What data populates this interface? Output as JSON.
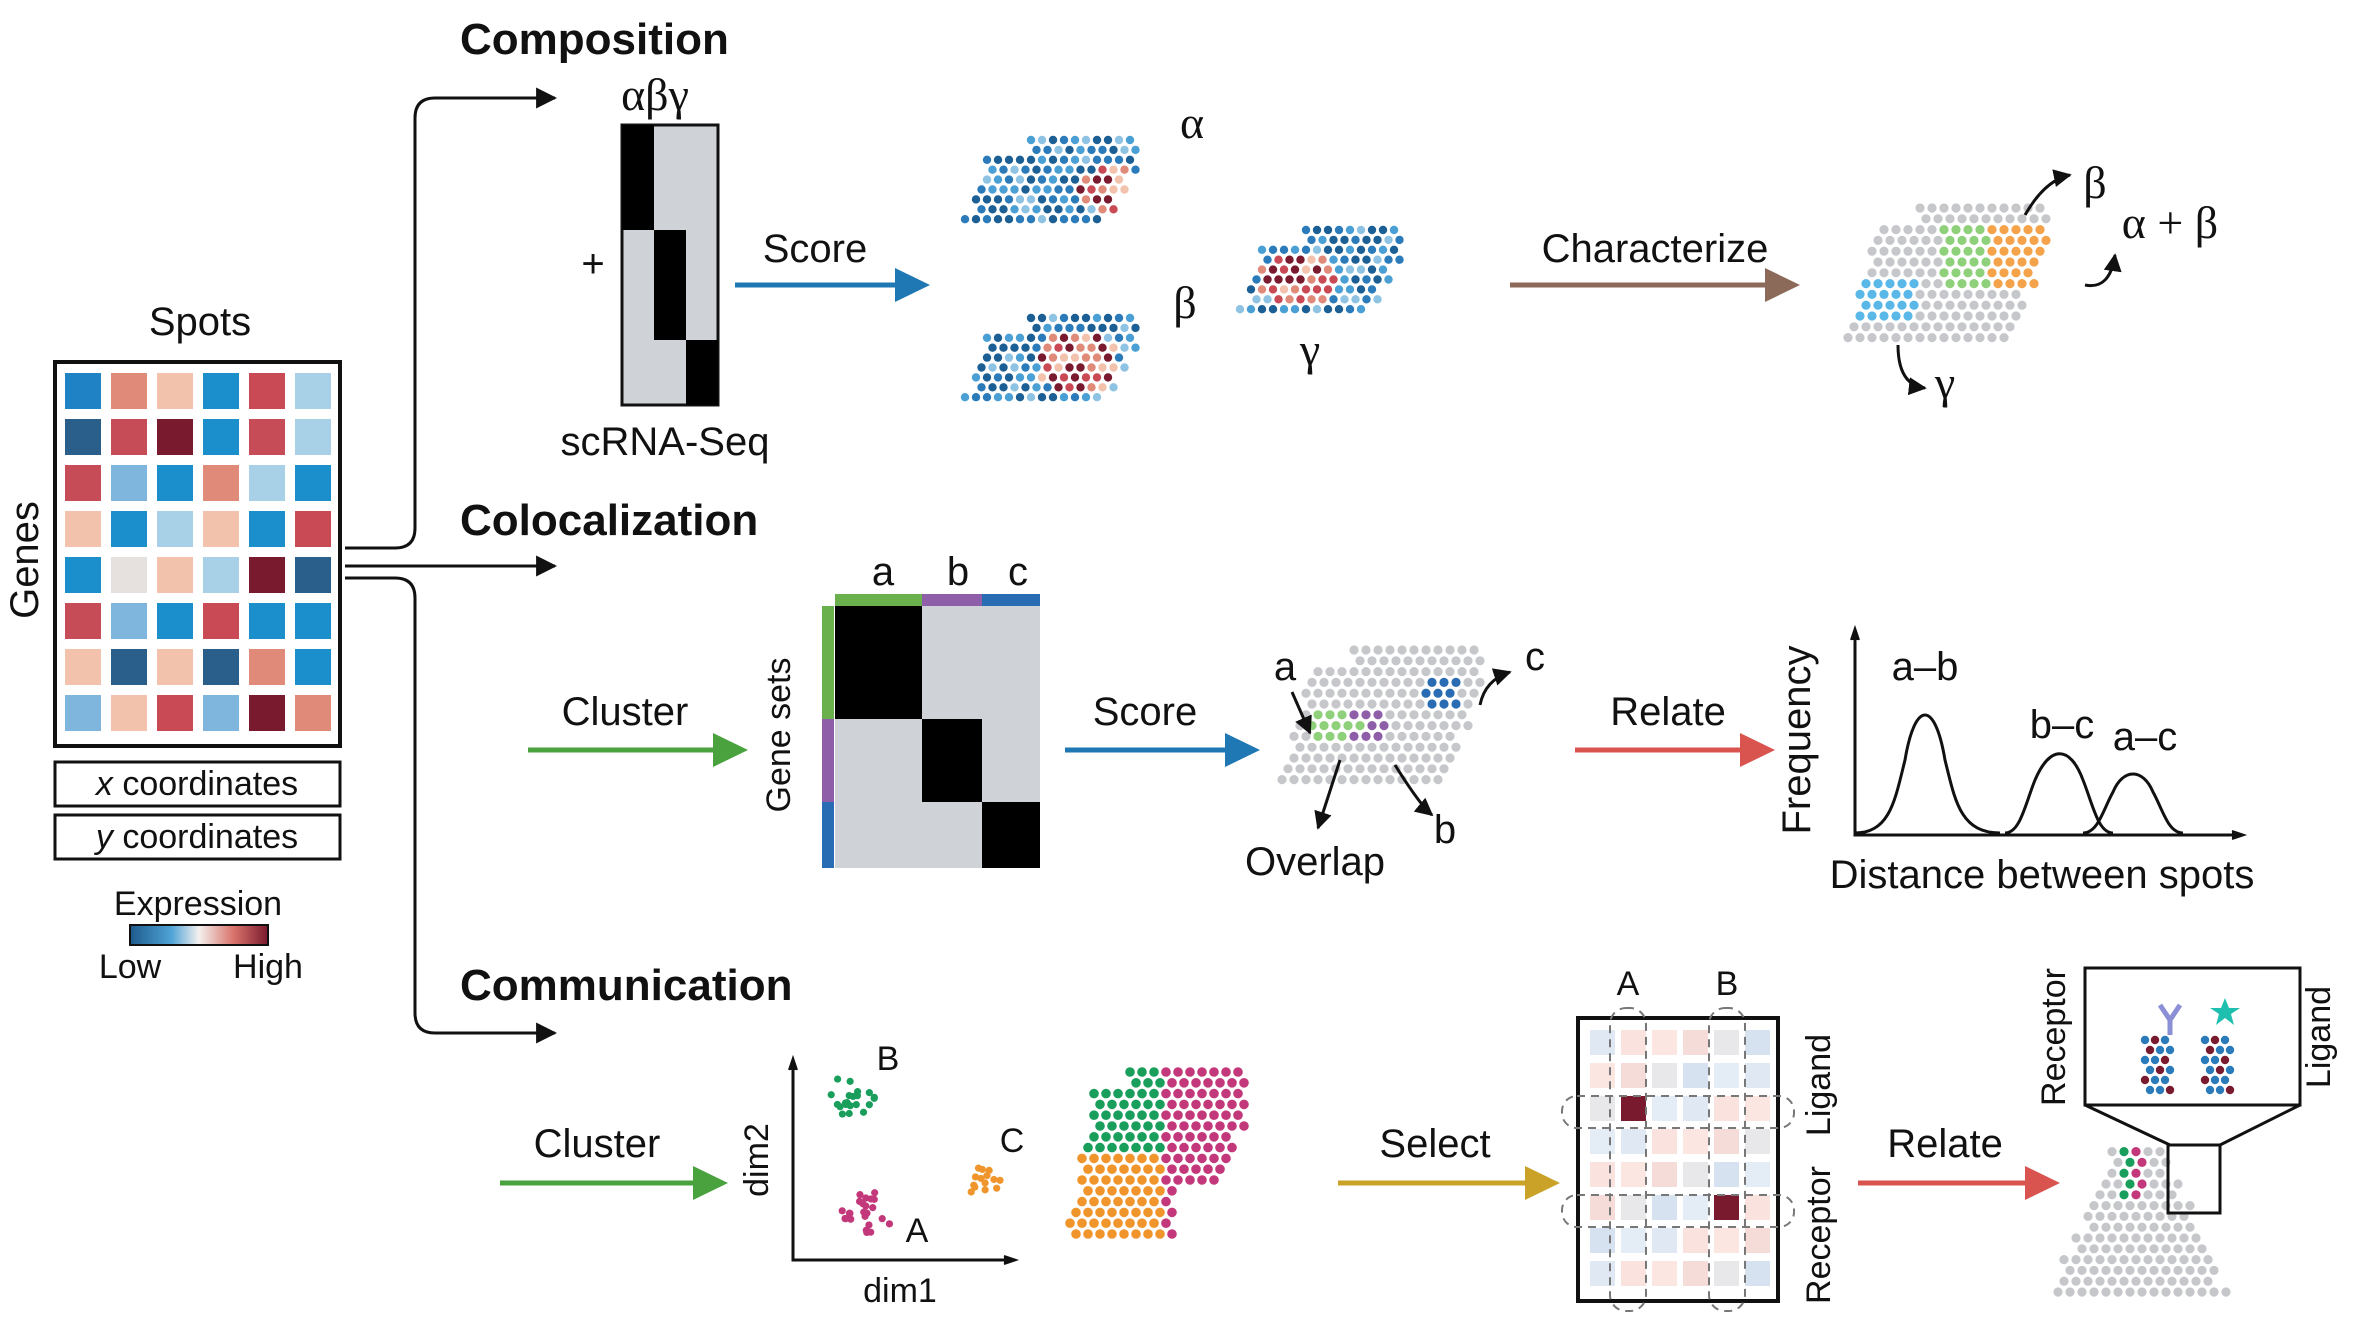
{
  "sections": {
    "composition": "Composition",
    "colocalization": "Colocalization",
    "communication": "Communication"
  },
  "input": {
    "spots": "Spots",
    "genes": "Genes",
    "x_label": "x",
    "x_rest": " coordinates",
    "y_label": "y",
    "y_rest": " coordinates",
    "expression": "Expression",
    "low": "Low",
    "high": "High"
  },
  "composition": {
    "header_greek": "αβγ",
    "plus": "+",
    "scrna": "scRNA-Seq",
    "score": "Score",
    "alpha": "α",
    "beta": "β",
    "gamma": "γ",
    "characterize": "Characterize",
    "res_beta": "β",
    "res_alpha_beta": "α + β",
    "res_gamma": "γ"
  },
  "colocalization": {
    "cluster": "Cluster",
    "gene_sets": "Gene sets",
    "col_a": "a",
    "col_b": "b",
    "col_c": "c",
    "score": "Score",
    "map_a": "a",
    "map_b": "b",
    "map_c": "c",
    "overlap": "Overlap",
    "relate": "Relate",
    "frequency": "Frequency",
    "peak_ab": "a–b",
    "peak_bc": "b–c",
    "peak_ac": "a–c",
    "distance": "Distance between spots"
  },
  "communication": {
    "cluster": "Cluster",
    "dim1": "dim1",
    "dim2": "dim2",
    "cl_A": "A",
    "cl_B": "B",
    "cl_C": "C",
    "select": "Select",
    "mat_A": "A",
    "mat_B": "B",
    "ligand": "Ligand",
    "receptor": "Receptor",
    "relate": "Relate",
    "zoom_receptor": "Receptor",
    "zoom_ligand": "Ligand"
  },
  "colors": {
    "blue_arrow": "#1f77b4",
    "brown_arrow": "#8c6a5a",
    "green_arrow": "#4aa23f",
    "red_arrow": "#d9534f",
    "gold_arrow": "#c9a227",
    "cluster_green": "#1a9e5c",
    "cluster_pink": "#c2387a",
    "cluster_orange": "#f0952c",
    "set_a": "#6ab04c",
    "set_b": "#8e5ea8",
    "set_c": "#2a6cb3"
  }
}
